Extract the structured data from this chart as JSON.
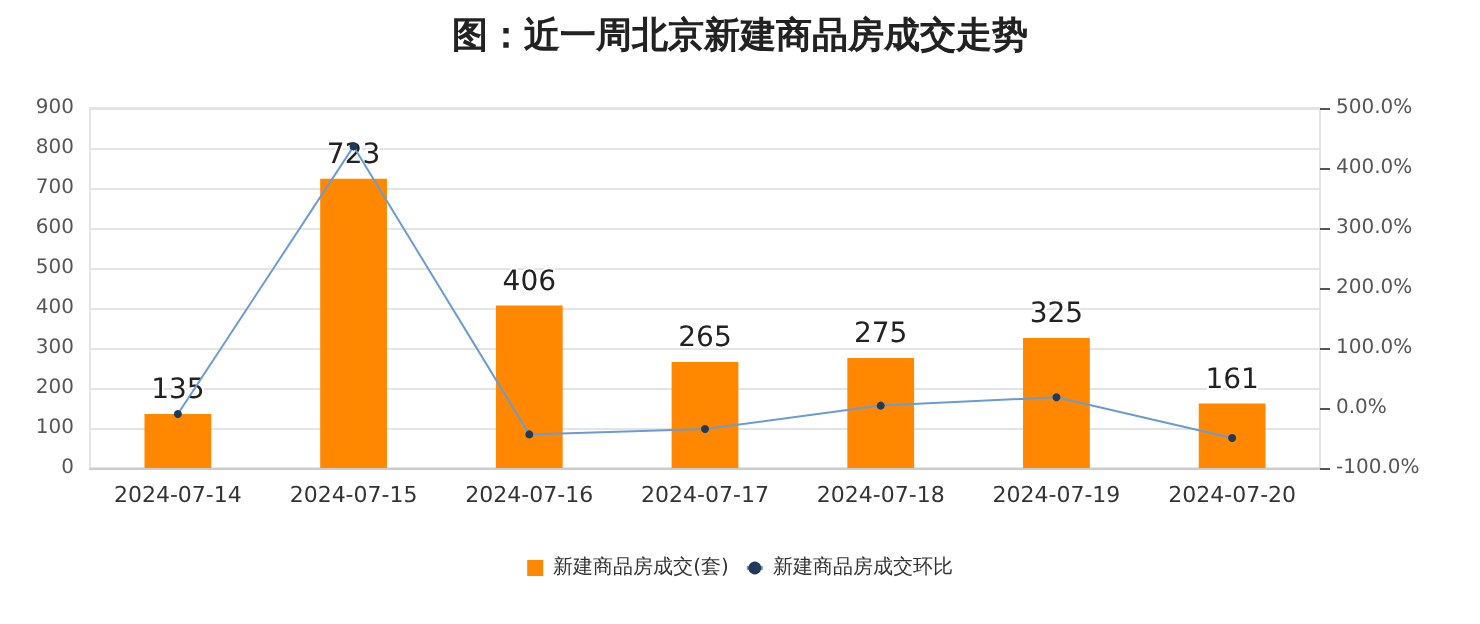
{
  "chart_data": {
    "type": "bar",
    "title": "图：近一周北京新建商品房成交走势",
    "categories": [
      "2024-07-14",
      "2024-07-15",
      "2024-07-16",
      "2024-07-17",
      "2024-07-18",
      "2024-07-19",
      "2024-07-20"
    ],
    "series": [
      {
        "name": "新建商品房成交(套)",
        "color": "#ff8800",
        "values": [
          135,
          723,
          406,
          265,
          275,
          325,
          161
        ],
        "data_labels": true
      },
      {
        "name": "新建商品房成交环比",
        "type": "line",
        "axis": "y2",
        "color": "#6a9bd3",
        "marker": "circle",
        "values": [
          -10,
          436,
          -44,
          -35,
          4,
          18,
          -50
        ]
      }
    ],
    "ylim": [
      0,
      900
    ],
    "yticks": [
      0,
      100,
      200,
      300,
      400,
      500,
      600,
      700,
      800,
      900
    ],
    "y2lim": [
      -100,
      500
    ],
    "y2ticks": [
      {
        "value": -100,
        "label": "-100.0%"
      },
      {
        "value": 0,
        "label": "0.0%"
      },
      {
        "value": 100,
        "label": "100.0%"
      },
      {
        "value": 200,
        "label": "200.0%"
      },
      {
        "value": 300,
        "label": "300.0%"
      },
      {
        "value": 400,
        "label": "400.0%"
      },
      {
        "value": 500,
        "label": "500.0%"
      }
    ],
    "grid": "y",
    "legend": "bottom"
  }
}
